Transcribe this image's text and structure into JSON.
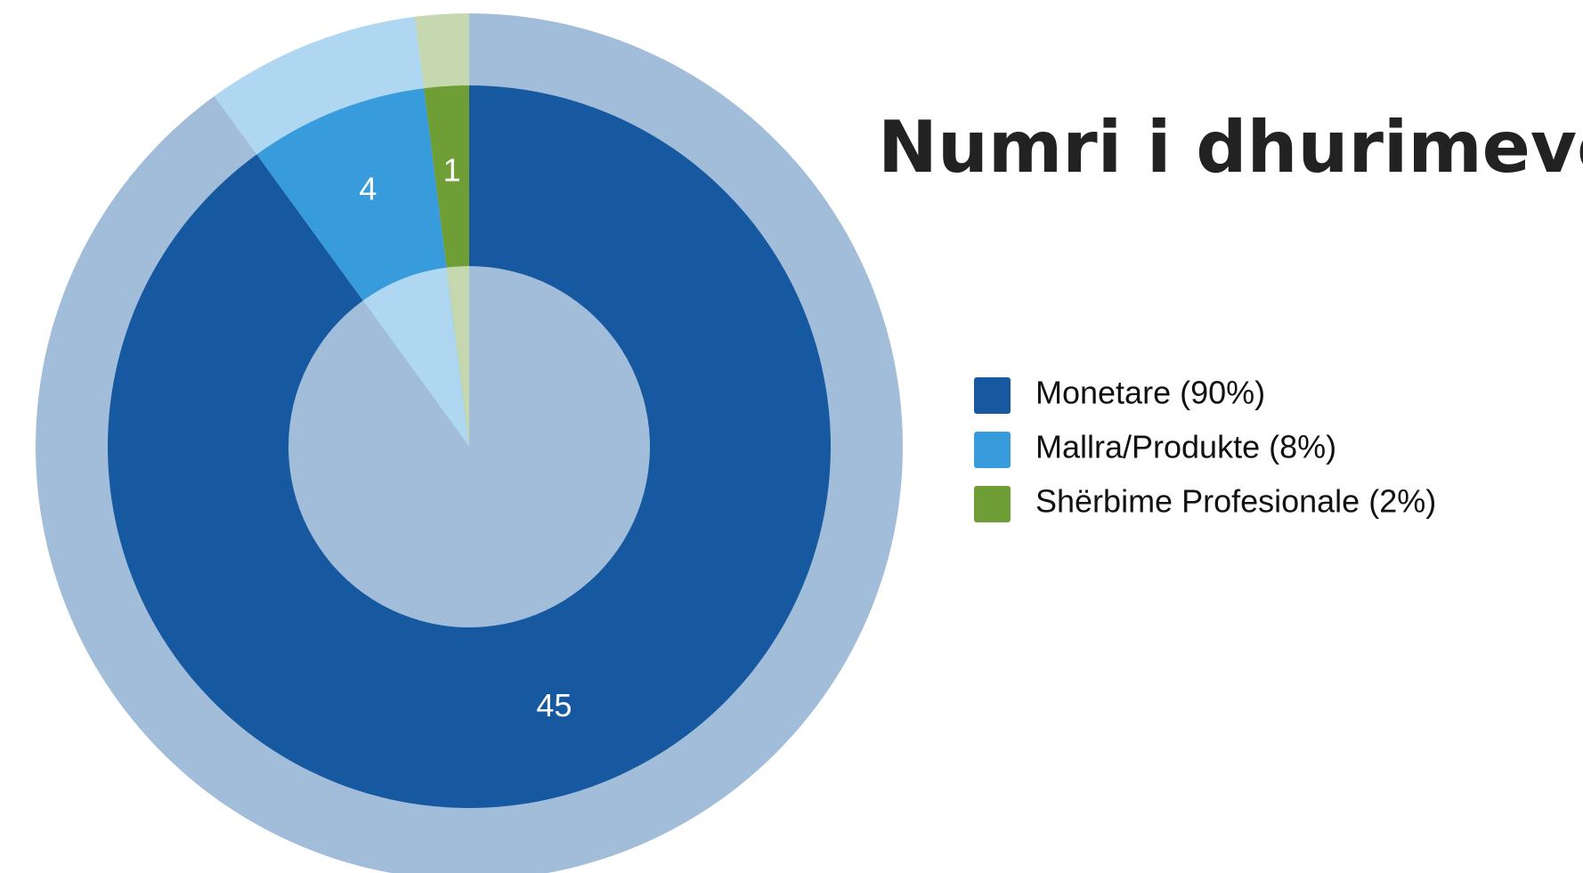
{
  "chart_data": {
    "type": "donut",
    "title": "Numri i dhurimeve",
    "categories": [
      "Monetare (90%)",
      "Mallra/Produkte (8%)",
      "Shërbime Profesionale  (2%)"
    ],
    "values": [
      45,
      4,
      1
    ],
    "colors": [
      "#1659a0",
      "#389bdb",
      "#6f9e37"
    ]
  }
}
